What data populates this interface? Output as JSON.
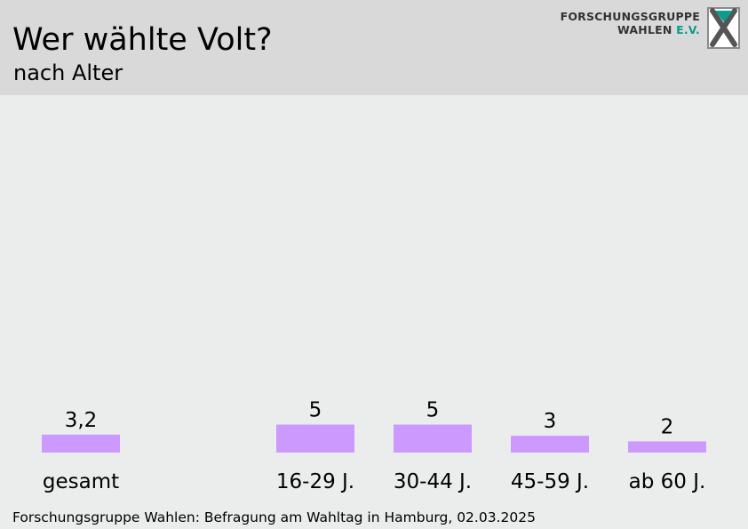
{
  "header": {
    "title": "Wer wählte Volt?",
    "subtitle": "nach Alter",
    "logo_line1": "FORSCHUNGSGRUPPE",
    "logo_line2_main": "WAHLEN ",
    "logo_line2_accent": "E.V."
  },
  "footer": {
    "source": "Forschungsgruppe Wahlen: Befragung am Wahltag in Hamburg, 02.03.2025"
  },
  "colors": {
    "bar": "#cc99ff",
    "header_bg": "#d9d9d9",
    "plot_bg": "#ebedec",
    "logo_accent": "#0a9c8c"
  },
  "chart_data": {
    "type": "bar",
    "title": "Wer wählte Volt?",
    "subtitle": "nach Alter",
    "categories": [
      "gesamt",
      "16-29 J.",
      "30-44 J.",
      "45-59 J.",
      "ab 60 J."
    ],
    "values": [
      3.2,
      5,
      5,
      3,
      2
    ],
    "value_labels": [
      "3,2",
      "5",
      "5",
      "3",
      "2"
    ],
    "unit": "%",
    "ylim": [
      0,
      100
    ],
    "grid": false,
    "legend": "none"
  }
}
